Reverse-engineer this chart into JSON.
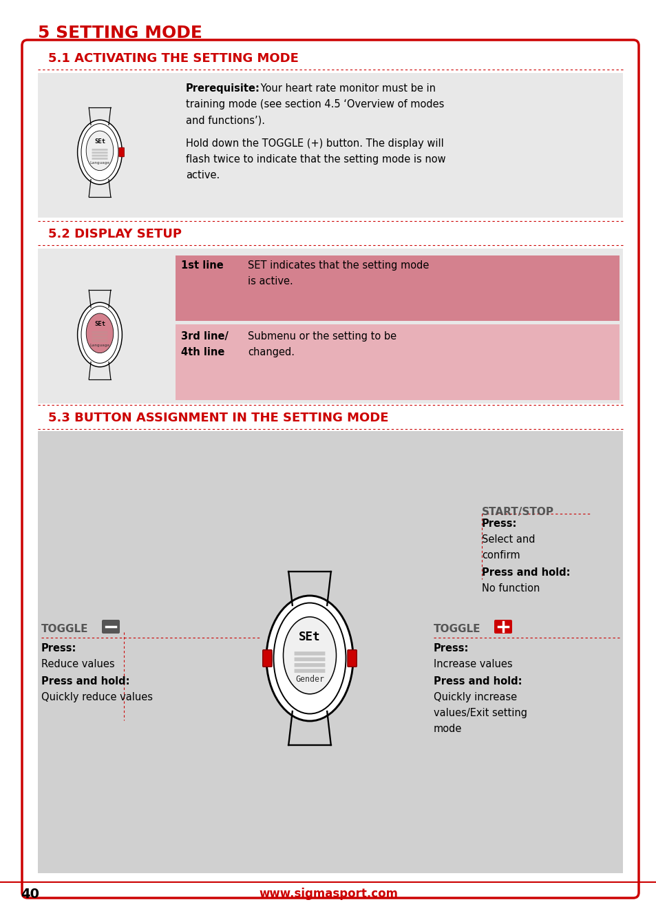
{
  "page_title": "5 SETTING MODE",
  "section1_title": "5.1 ACTIVATING THE SETTING MODE",
  "section1_text1_bold": "Prerequisite:",
  "section1_text1": " Your heart rate monitor must be in training mode (see section 4.5 ‘Overview of modes and functions’).",
  "section1_text2": "Hold down the TOGGLE (+) button. The display will flash twice to indicate that the setting mode is now active.",
  "section2_title": "5.2 DISPLAY SETUP",
  "section2_row1_label": "1st line",
  "section2_row1_text": "SET indicates that the setting mode is active.",
  "section2_row2_label": "3rd line/\n4th line",
  "section2_row2_text": "Submenu or the setting to be changed.",
  "section3_title": "5.3 BUTTON ASSIGNMENT IN THE SETTING MODE",
  "toggle_minus_title": "TOGGLE",
  "toggle_minus_press": "Press:",
  "toggle_minus_press_text": "Reduce values",
  "toggle_minus_hold": "Press and hold:",
  "toggle_minus_hold_text": "Quickly reduce values",
  "toggle_plus_title": "TOGGLE",
  "toggle_plus_press": "Press:",
  "toggle_plus_press_text": "Increase values",
  "toggle_plus_hold": "Press and hold:",
  "toggle_plus_hold_text": "Quickly increase values/Exit setting mode",
  "start_stop_title": "START/STOP",
  "start_stop_press": "Press:",
  "start_stop_press_text": "Select and confirm",
  "start_stop_hold": "Press and hold:",
  "start_stop_hold_text": "No function",
  "footer_page": "40",
  "footer_url": "www.sigmasport.com",
  "red_color": "#cc0000",
  "pink_bg": "#d4818e",
  "light_pink_bg": "#e8b0b8",
  "gray_bg": "#d0d0d0",
  "light_gray_bg": "#e8e8e8",
  "dark_gray": "#555555",
  "box_border": "#cc0000"
}
